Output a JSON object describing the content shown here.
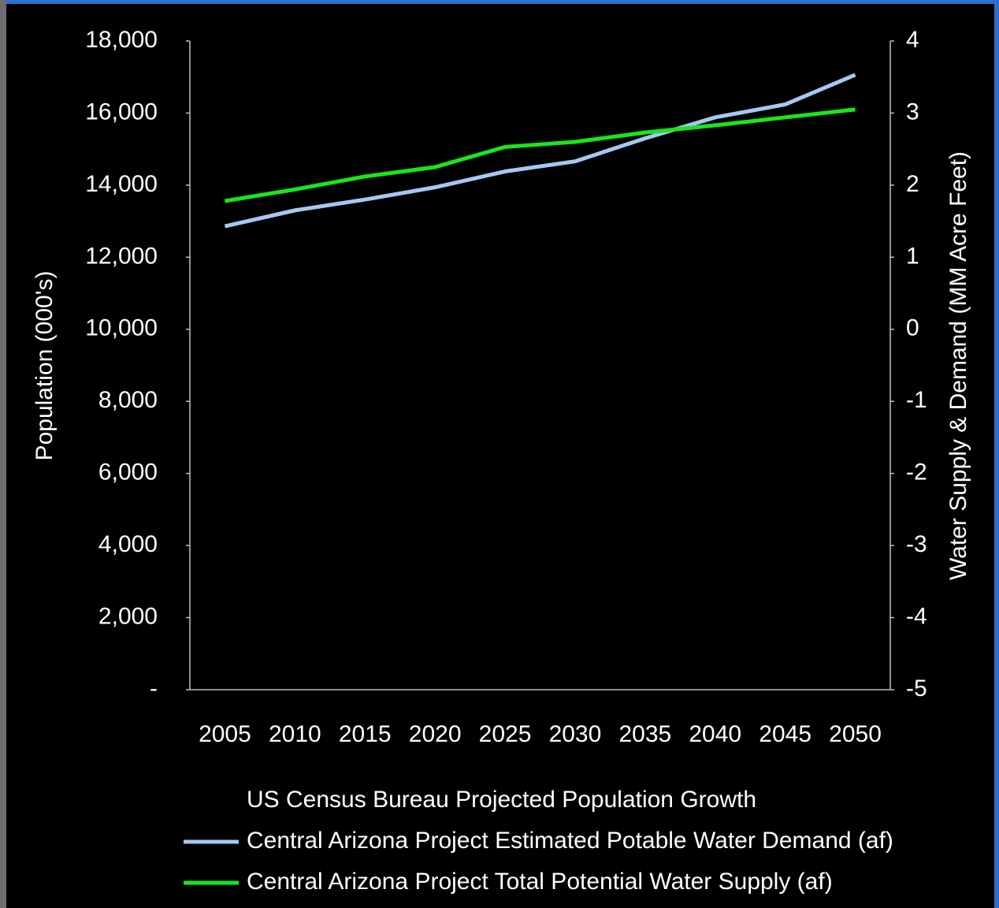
{
  "chart_data": {
    "type": "line",
    "ylabel": "Population (000's)",
    "y2label": "Water Supply & Demand (MM Acre Feet)",
    "categories": [
      "2005",
      "2010",
      "2015",
      "2020",
      "2025",
      "2030",
      "2035",
      "2040",
      "2045",
      "2050"
    ],
    "ylim": [
      0,
      18000
    ],
    "yticks": [
      {
        "value": 0,
        "label": "-"
      },
      {
        "value": 2000,
        "label": "2,000"
      },
      {
        "value": 4000,
        "label": "4,000"
      },
      {
        "value": 6000,
        "label": "6,000"
      },
      {
        "value": 8000,
        "label": "8,000"
      },
      {
        "value": 10000,
        "label": "10,000"
      },
      {
        "value": 12000,
        "label": "12,000"
      },
      {
        "value": 14000,
        "label": "14,000"
      },
      {
        "value": 16000,
        "label": "16,000"
      },
      {
        "value": 18000,
        "label": "18,000"
      }
    ],
    "y2lim": [
      -5,
      4
    ],
    "y2ticks": [
      -5,
      -4,
      -3,
      -2,
      -1,
      0,
      1,
      2,
      3,
      4
    ],
    "series": [
      {
        "name": "US Census Bureau Projected Population Growth",
        "color": "#000000",
        "values": [
          null,
          null,
          null,
          null,
          null,
          null,
          null,
          null,
          null,
          null
        ]
      },
      {
        "name": "Central Arizona Project Estimated Potable Water Demand (af)",
        "color": "#a6c8f0",
        "axis": "y2",
        "values": [
          1.43,
          1.65,
          1.8,
          1.97,
          2.19,
          2.33,
          2.65,
          2.94,
          3.12,
          3.53
        ]
      },
      {
        "name": "Central Arizona Project Total Potential Water Supply (af)",
        "color": "#19e619",
        "axis": "y2",
        "values": [
          1.78,
          1.94,
          2.12,
          2.25,
          2.53,
          2.6,
          2.73,
          2.83,
          2.94,
          3.05
        ]
      }
    ]
  }
}
